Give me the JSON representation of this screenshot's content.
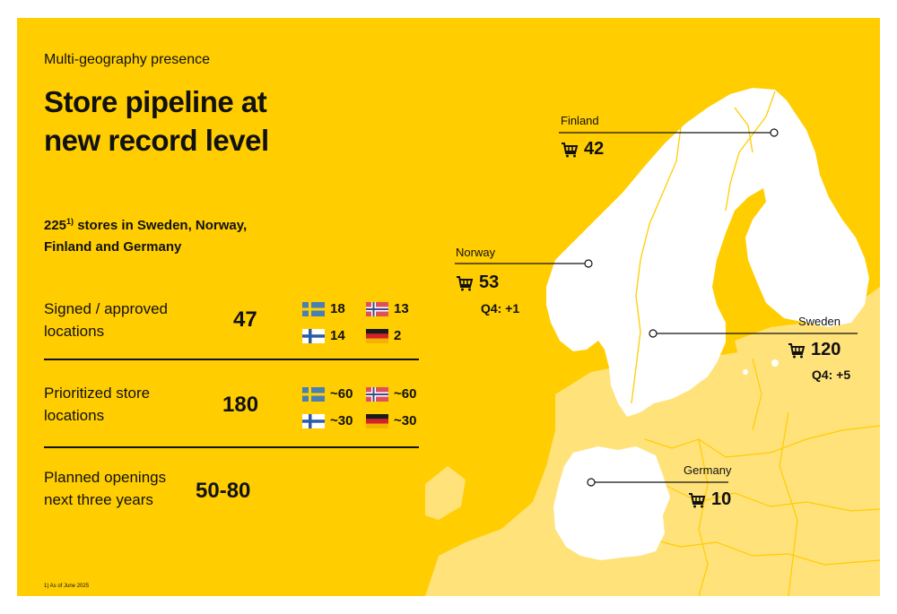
{
  "subtitle": "Multi-geography presence",
  "title_line1": "Store pipeline at",
  "title_line2": "new record level",
  "intro": {
    "number": "225",
    "sup": "1)",
    "line1_rest": " stores in Sweden, Norway,",
    "line2": "Finland and Germany"
  },
  "rows": [
    {
      "label_line1": "Signed / approved",
      "label_line2": "locations",
      "value": "47",
      "flags": {
        "sweden": "18",
        "norway": "13",
        "finland": "14",
        "germany": "2"
      }
    },
    {
      "label_line1": "Prioritized store",
      "label_line2": "locations",
      "value": "180",
      "flags": {
        "sweden": "~60",
        "norway": "~60",
        "finland": "~30",
        "germany": "~30"
      }
    },
    {
      "label_line1": "Planned openings",
      "label_line2": "next three years",
      "value": "50-80"
    }
  ],
  "footnote": "1) As of June 2025",
  "countries": {
    "finland": {
      "name": "Finland",
      "stores": "42"
    },
    "norway": {
      "name": "Norway",
      "stores": "53",
      "q4": "Q4: +1"
    },
    "sweden": {
      "name": "Sweden",
      "stores": "120",
      "q4": "Q4: +5"
    },
    "germany": {
      "name": "Germany",
      "stores": "10"
    }
  },
  "colors": {
    "background": "#FFCD00",
    "land_europe": "#FFE27A",
    "land_highlight": "#FFFFFF",
    "text": "#111111"
  },
  "icons": [
    "cart-icon",
    "flag-sweden",
    "flag-norway",
    "flag-finland",
    "flag-germany"
  ]
}
